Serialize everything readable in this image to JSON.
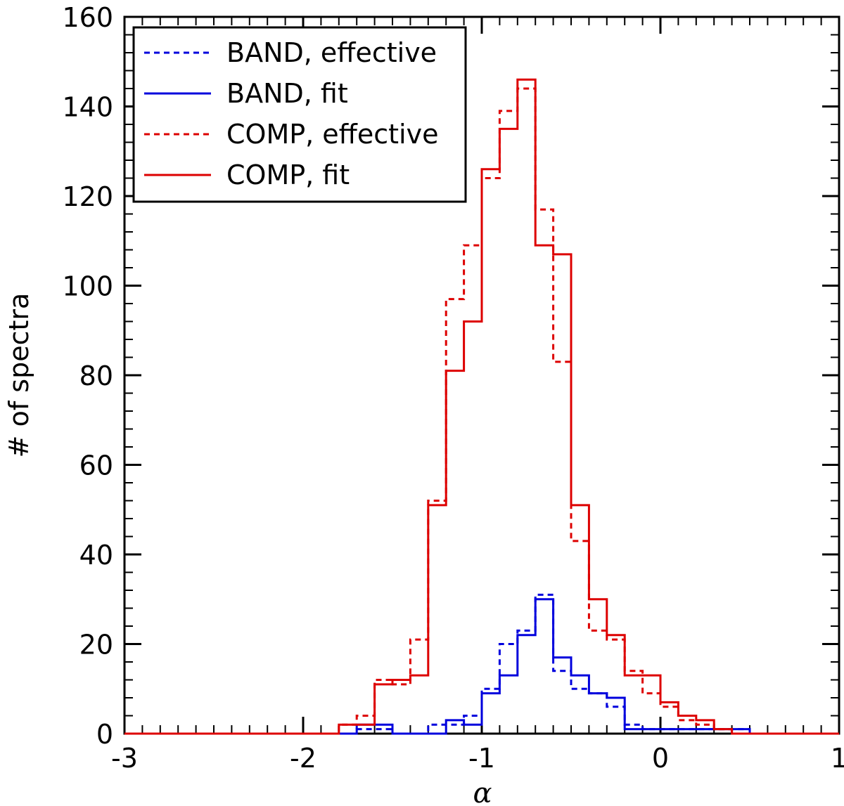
{
  "chart_data": {
    "type": "histogram",
    "title": "",
    "xlabel": "α",
    "ylabel": "# of spectra",
    "xlim": [
      -3,
      1
    ],
    "ylim": [
      0,
      160
    ],
    "x_ticks": [
      -3,
      -2,
      -1,
      0,
      1
    ],
    "x_tick_labels": [
      "-3",
      "-2",
      "-1",
      "0",
      "1"
    ],
    "y_ticks": [
      0,
      20,
      40,
      60,
      80,
      100,
      120,
      140,
      160
    ],
    "y_tick_labels": [
      "0",
      "20",
      "40",
      "60",
      "80",
      "100",
      "120",
      "140",
      "160"
    ],
    "grid": false,
    "legend_position": "top-left",
    "bin_edges": [
      -3.0,
      -2.9,
      -2.8,
      -2.7,
      -2.6,
      -2.5,
      -2.4,
      -2.3,
      -2.2,
      -2.1,
      -2.0,
      -1.9,
      -1.8,
      -1.7,
      -1.6,
      -1.5,
      -1.4,
      -1.3,
      -1.2,
      -1.1,
      -1.0,
      -0.9,
      -0.8,
      -0.7,
      -0.6,
      -0.5,
      -0.4,
      -0.3,
      -0.2,
      -0.1,
      0.0,
      0.1,
      0.2,
      0.3,
      0.4,
      0.5,
      0.6,
      0.7,
      0.8,
      0.9,
      1.0
    ],
    "series": [
      {
        "name": "BAND, effective",
        "color": "#0000dd",
        "style": "dashed",
        "values": [
          0,
          0,
          0,
          0,
          0,
          0,
          0,
          0,
          0,
          0,
          0,
          0,
          0,
          1,
          1,
          0,
          0,
          2,
          2,
          4,
          10,
          20,
          23,
          31,
          14,
          10,
          9,
          6,
          2,
          1,
          1,
          1,
          1,
          1,
          1,
          0,
          0,
          0,
          0,
          0
        ]
      },
      {
        "name": "BAND, fit",
        "color": "#0000dd",
        "style": "solid",
        "values": [
          0,
          0,
          0,
          0,
          0,
          0,
          0,
          0,
          0,
          0,
          0,
          0,
          0,
          2,
          2,
          0,
          0,
          0,
          3,
          2,
          9,
          13,
          22,
          30,
          17,
          13,
          9,
          8,
          1,
          1,
          1,
          1,
          1,
          1,
          1,
          0,
          0,
          0,
          0,
          0
        ]
      },
      {
        "name": "COMP, effective",
        "color": "#dd0000",
        "style": "dashed",
        "values": [
          0,
          0,
          0,
          0,
          0,
          0,
          0,
          0,
          0,
          0,
          0,
          0,
          2,
          4,
          12,
          11,
          21,
          52,
          97,
          109,
          124,
          139,
          144,
          117,
          83,
          43,
          23,
          21,
          14,
          9,
          6,
          3,
          2,
          1,
          0,
          0,
          0,
          0,
          0,
          0
        ]
      },
      {
        "name": "COMP, fit",
        "color": "#dd0000",
        "style": "solid",
        "values": [
          0,
          0,
          0,
          0,
          0,
          0,
          0,
          0,
          0,
          0,
          0,
          0,
          2,
          2,
          11,
          12,
          13,
          51,
          81,
          92,
          126,
          135,
          146,
          109,
          107,
          51,
          30,
          22,
          13,
          13,
          7,
          4,
          3,
          1,
          0,
          0,
          0,
          0,
          0,
          0
        ]
      }
    ]
  }
}
